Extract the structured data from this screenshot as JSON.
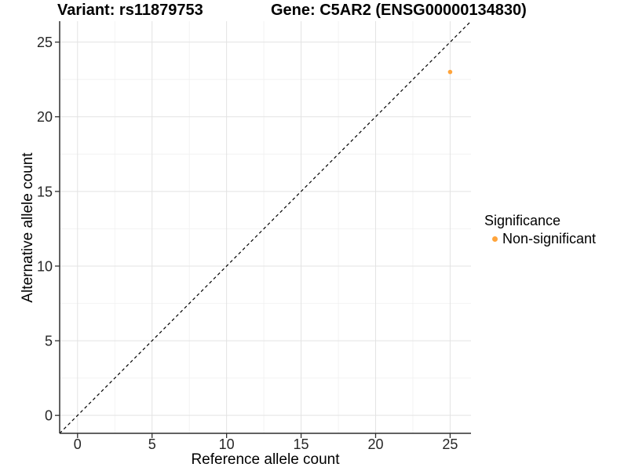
{
  "chart_data": {
    "type": "scatter",
    "title_left": "Variant: rs11879753",
    "title_right": "Gene: C5AR2 (ENSG00000134830)",
    "xlabel": "Reference allele count",
    "ylabel": "Alternative allele count",
    "x_ticks": [
      0,
      5,
      10,
      15,
      20,
      25
    ],
    "y_ticks": [
      0,
      5,
      10,
      15,
      20,
      25
    ],
    "x_minor": [
      2.5,
      7.5,
      12.5,
      17.5,
      22.5
    ],
    "y_minor": [
      2.5,
      7.5,
      12.5,
      17.5,
      22.5
    ],
    "xlim": [
      -1.2,
      26.4
    ],
    "ylim": [
      -1.2,
      26.4
    ],
    "grid": true,
    "points": [
      {
        "x": 25,
        "y": 23,
        "series": "Non-significant",
        "color": "#FFA43B"
      }
    ],
    "reference_line": {
      "kind": "identity",
      "slope": 1,
      "intercept": 0,
      "style": "dashed",
      "color": "#000000"
    },
    "legend": {
      "title": "Significance",
      "position": "right",
      "items": [
        {
          "label": "Non-significant",
          "color": "#FFA43B",
          "marker": "circle-icon"
        }
      ]
    },
    "colors": {
      "grid_major": "#E3E3E3",
      "grid_minor": "#F0F0F0",
      "axis_line": "#2F2F2F",
      "tick_label": "#262626",
      "point": "#FFA43B"
    }
  }
}
